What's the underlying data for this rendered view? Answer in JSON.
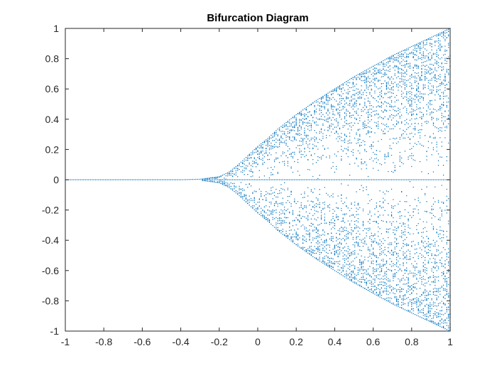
{
  "chart_data": {
    "type": "scatter",
    "title": "Bifurcation Diagram",
    "xlabel": "",
    "ylabel": "",
    "xlim": [
      -1,
      1
    ],
    "ylim": [
      -1,
      1
    ],
    "xticks": [
      "-1",
      "-0.8",
      "-0.6",
      "-0.4",
      "-0.2",
      "0",
      "0.2",
      "0.4",
      "0.6",
      "0.8",
      "1"
    ],
    "yticks": [
      "1",
      "0.8",
      "0.6",
      "0.4",
      "0.2",
      "0",
      "-0.2",
      "-0.4",
      "-0.6",
      "-0.8",
      "-1"
    ],
    "grid": false,
    "legend": "none",
    "series": [
      {
        "color": "#0072BD",
        "x": [
          -1,
          -0.8,
          -0.6,
          -0.4,
          -0.3,
          -0.2,
          -0.15,
          -0.1,
          -0.05,
          0,
          0.05,
          0.1,
          0.2,
          0.3,
          0.4,
          0.5,
          0.6,
          0.7,
          0.8,
          0.9,
          1
        ],
        "y_upper": [
          0,
          0,
          0,
          0,
          0.003,
          0.02,
          0.05,
          0.1,
          0.16,
          0.22,
          0.27,
          0.33,
          0.43,
          0.52,
          0.6,
          0.68,
          0.75,
          0.82,
          0.88,
          0.94,
          1.0
        ],
        "y_lower": [
          0,
          0,
          0,
          0,
          -0.003,
          -0.02,
          -0.05,
          -0.1,
          -0.16,
          -0.22,
          -0.27,
          -0.33,
          -0.43,
          -0.52,
          -0.6,
          -0.68,
          -0.75,
          -0.82,
          -0.88,
          -0.94,
          -1.0
        ]
      }
    ]
  }
}
